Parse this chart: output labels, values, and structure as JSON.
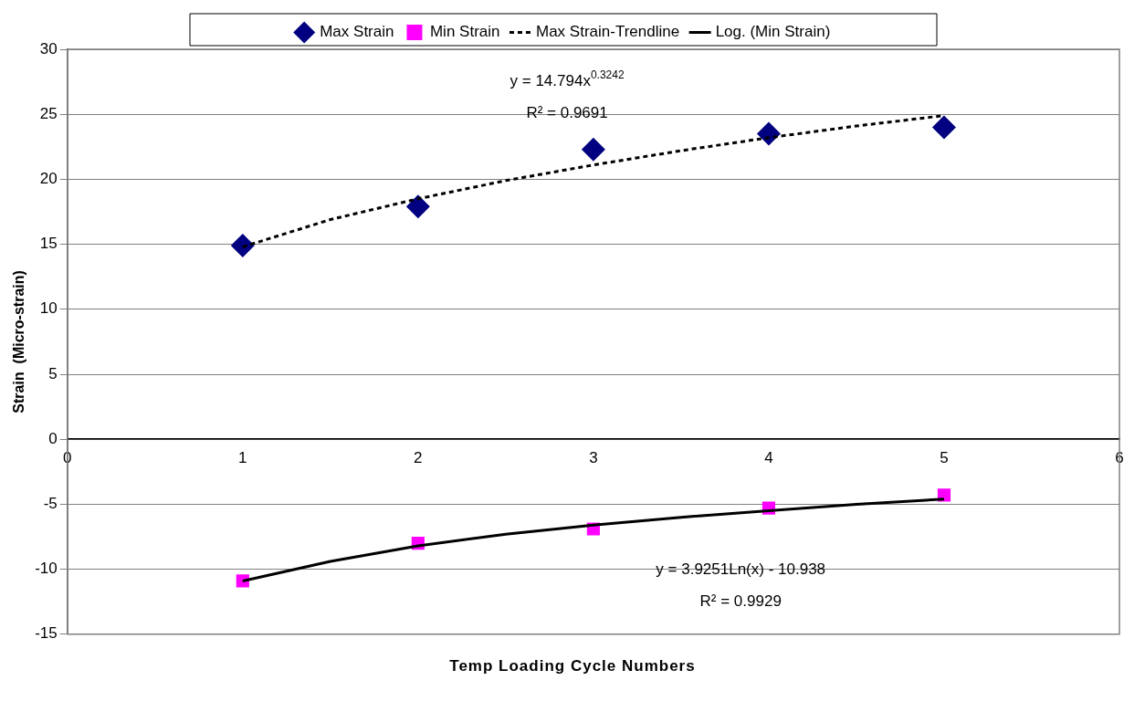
{
  "chart_data": {
    "type": "scatter",
    "xlabel": "Temp Loading Cycle Numbers",
    "ylabel": "Strain  (Micro-strain)",
    "x": [
      1,
      2,
      3,
      4,
      5
    ],
    "series": [
      {
        "name": "Max Strain",
        "color": "#000080",
        "marker": "diamond",
        "values": [
          14.9,
          17.9,
          22.3,
          23.5,
          24.0
        ]
      },
      {
        "name": "Min Strain",
        "color": "#ff00ff",
        "marker": "square",
        "values": [
          -10.9,
          -8.0,
          -6.9,
          -5.3,
          -4.3
        ]
      },
      {
        "name": "Max Strain-Trendline",
        "type": "line",
        "color": "#000000",
        "marker": "none",
        "line_style": "dashed",
        "x": [
          1,
          1.5,
          2,
          2.5,
          3,
          3.5,
          4,
          4.5,
          5
        ],
        "values": [
          14.8,
          16.9,
          18.5,
          19.9,
          21.1,
          22.2,
          23.2,
          24.1,
          24.9
        ]
      },
      {
        "name": "Log. (Min Strain)",
        "type": "line",
        "color": "#000000",
        "marker": "none",
        "line_style": "solid",
        "x": [
          1,
          1.5,
          2,
          2.5,
          3,
          3.5,
          4,
          4.5,
          5
        ],
        "values": [
          -10.9,
          -9.4,
          -8.2,
          -7.3,
          -6.6,
          -6.0,
          -5.5,
          -5.0,
          -4.6
        ]
      }
    ],
    "xlim": [
      0,
      6
    ],
    "xticks": [
      0,
      1,
      2,
      3,
      4,
      5,
      6
    ],
    "ylim": [
      -15,
      30
    ],
    "yticks": [
      -15,
      -10,
      -5,
      0,
      5,
      10,
      15,
      20,
      25,
      30
    ],
    "grid": "y",
    "legend": "top",
    "annotations": [
      "y = 14.794x$^{0.3242}$",
      "R² = 0.9691",
      "y = 3.9251Ln(x) - 10.938",
      "R² = 0.9929"
    ]
  }
}
